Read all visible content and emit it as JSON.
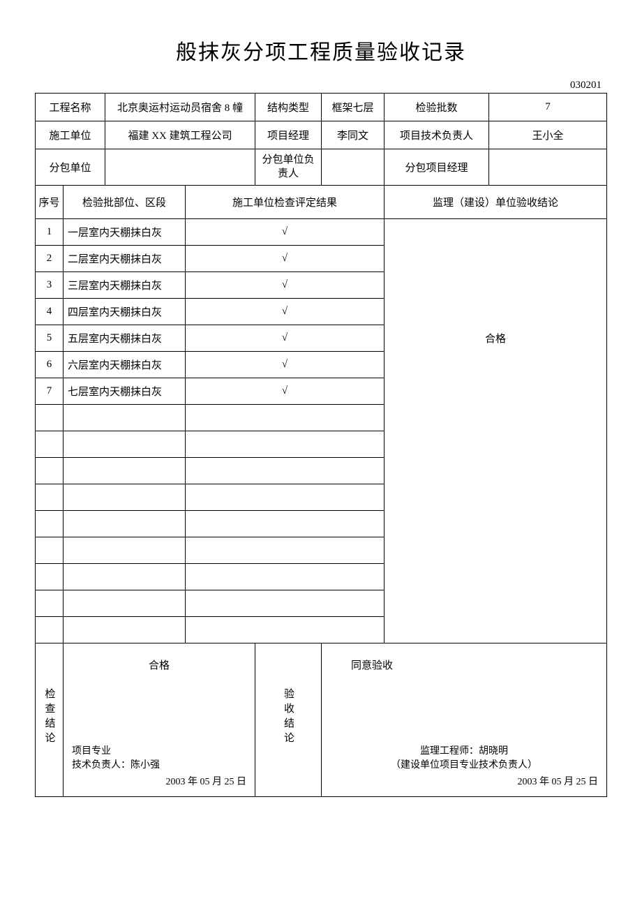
{
  "document": {
    "title": "般抹灰分项工程质量验收记录",
    "code": "030201"
  },
  "header": {
    "labels": {
      "project_name": "工程名称",
      "structure_type": "结构类型",
      "batch_count": "检验批数",
      "construction_unit": "施工单位",
      "project_manager": "项目经理",
      "tech_leader": "项目技术负责人",
      "subcontractor": "分包单位",
      "sub_leader": "分包单位负责人",
      "sub_manager": "分包项目经理"
    },
    "values": {
      "project_name": "北京奥运村运动员宿舍 8 幢",
      "structure_type": "框架七层",
      "batch_count": "7",
      "construction_unit": "福建 XX 建筑工程公司",
      "project_manager": "李同文",
      "tech_leader": "王小全",
      "subcontractor": "",
      "sub_leader": "",
      "sub_manager": ""
    }
  },
  "table_headers": {
    "seq": "序号",
    "part": "检验批部位、区段",
    "result": "施工单位检查评定结果",
    "conclusion": "监理（建设）单位验收结论"
  },
  "rows": [
    {
      "seq": "1",
      "part": "一层室内天棚抹白灰",
      "result": "√"
    },
    {
      "seq": "2",
      "part": "二层室内天棚抹白灰",
      "result": "√"
    },
    {
      "seq": "3",
      "part": "三层室内天棚抹白灰",
      "result": "√"
    },
    {
      "seq": "4",
      "part": "四层室内天棚抹白灰",
      "result": "√"
    },
    {
      "seq": "5",
      "part": "五层室内天棚抹白灰",
      "result": "√"
    },
    {
      "seq": "6",
      "part": "六层室内天棚抹白灰",
      "result": "√"
    },
    {
      "seq": "7",
      "part": "七层室内天棚抹白灰",
      "result": "√"
    },
    {
      "seq": "",
      "part": "",
      "result": ""
    },
    {
      "seq": "",
      "part": "",
      "result": ""
    },
    {
      "seq": "",
      "part": "",
      "result": ""
    },
    {
      "seq": "",
      "part": "",
      "result": ""
    },
    {
      "seq": "",
      "part": "",
      "result": ""
    },
    {
      "seq": "",
      "part": "",
      "result": ""
    },
    {
      "seq": "",
      "part": "",
      "result": ""
    },
    {
      "seq": "",
      "part": "",
      "result": ""
    },
    {
      "seq": "",
      "part": "",
      "result": ""
    }
  ],
  "merged_conclusion": "合格",
  "footer": {
    "left": {
      "label": "检查结论",
      "status": "合格",
      "sig_line1": "项目专业",
      "sig_line2": "技术负责人：陈小强",
      "date": "2003 年 05 月 25 日"
    },
    "right": {
      "label": "验收结论",
      "status": "同意验收",
      "sig_line1": "监理工程师：胡晓明",
      "sig_line2": "（建设单位项目专业技术负责人）",
      "date": "2003 年 05 月 25 日"
    }
  }
}
